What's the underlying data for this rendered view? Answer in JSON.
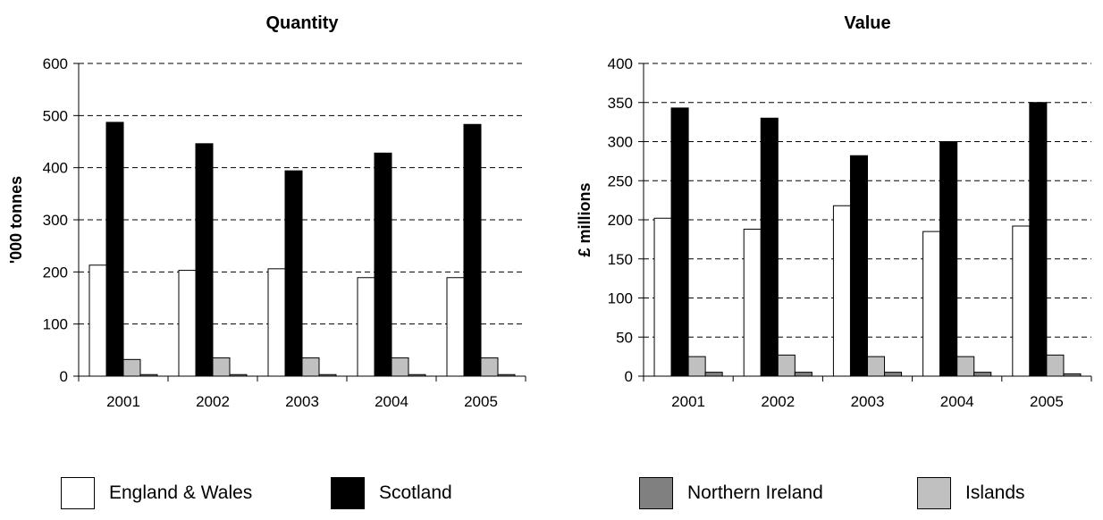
{
  "legend": [
    {
      "label": "England & Wales",
      "color": "#ffffff"
    },
    {
      "label": "Scotland",
      "color": "#000000"
    },
    {
      "label": "Northern Ireland",
      "color": "#808080"
    },
    {
      "label": "Islands",
      "color": "#c0c0c0"
    }
  ],
  "chart_data": [
    {
      "type": "bar",
      "title": "Quantity",
      "xlabel": "",
      "ylabel": "'000 tonnes",
      "ylim": [
        0,
        600
      ],
      "yticks": [
        0,
        100,
        200,
        300,
        400,
        500,
        600
      ],
      "grid": true,
      "categories": [
        "2001",
        "2002",
        "2003",
        "2004",
        "2005"
      ],
      "series": [
        {
          "name": "England & Wales",
          "color": "#ffffff",
          "values": [
            213,
            203,
            206,
            189,
            189
          ]
        },
        {
          "name": "Scotland",
          "color": "#000000",
          "values": [
            487,
            446,
            394,
            428,
            483
          ]
        },
        {
          "name": "Islands",
          "color": "#c0c0c0",
          "values": [
            32,
            35,
            35,
            35,
            35
          ]
        },
        {
          "name": "Northern Ireland",
          "color": "#808080",
          "values": [
            3,
            3,
            3,
            3,
            3
          ]
        }
      ]
    },
    {
      "type": "bar",
      "title": "Value",
      "xlabel": "",
      "ylabel": "£ millions",
      "ylim": [
        0,
        400
      ],
      "yticks": [
        0,
        50,
        100,
        150,
        200,
        250,
        300,
        350,
        400
      ],
      "grid": true,
      "categories": [
        "2001",
        "2002",
        "2003",
        "2004",
        "2005"
      ],
      "series": [
        {
          "name": "England & Wales",
          "color": "#ffffff",
          "values": [
            202,
            188,
            218,
            185,
            192
          ]
        },
        {
          "name": "Scotland",
          "color": "#000000",
          "values": [
            343,
            330,
            282,
            300,
            350
          ]
        },
        {
          "name": "Islands",
          "color": "#c0c0c0",
          "values": [
            25,
            27,
            25,
            25,
            27
          ]
        },
        {
          "name": "Northern Ireland",
          "color": "#808080",
          "values": [
            5,
            5,
            5,
            5,
            3
          ]
        }
      ]
    }
  ]
}
